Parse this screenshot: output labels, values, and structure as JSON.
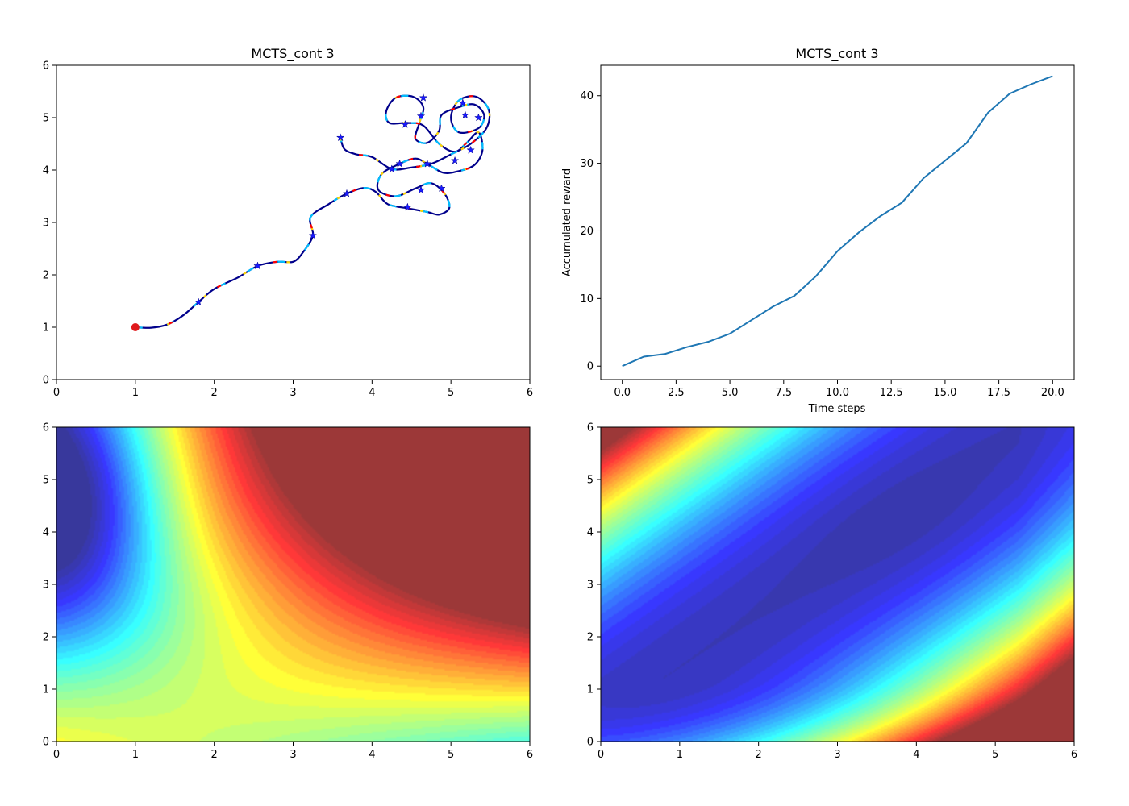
{
  "chart_data": [
    {
      "type": "line",
      "title": "MCTS_cont 3",
      "xlabel": "",
      "ylabel": "",
      "xlim": [
        0,
        6
      ],
      "ylim": [
        0,
        6
      ],
      "x_ticks": [
        "0",
        "1",
        "2",
        "3",
        "4",
        "5",
        "6"
      ],
      "y_ticks": [
        "0",
        "1",
        "2",
        "3",
        "4",
        "5",
        "6"
      ],
      "start_point": {
        "x": 1.0,
        "y": 1.0,
        "color": "#e0191c"
      },
      "path_color": "#00008b",
      "path_highlight_colors": [
        "#00bfff",
        "#ffd700",
        "#ff0000"
      ],
      "path": [
        [
          1.0,
          1.0
        ],
        [
          1.2,
          0.99
        ],
        [
          1.4,
          1.05
        ],
        [
          1.6,
          1.22
        ],
        [
          1.8,
          1.48
        ],
        [
          2.0,
          1.73
        ],
        [
          2.3,
          1.95
        ],
        [
          2.55,
          2.17
        ],
        [
          2.8,
          2.25
        ],
        [
          3.0,
          2.25
        ],
        [
          3.12,
          2.42
        ],
        [
          3.25,
          2.75
        ],
        [
          3.22,
          3.1
        ],
        [
          3.45,
          3.35
        ],
        [
          3.68,
          3.55
        ],
        [
          3.9,
          3.66
        ],
        [
          4.05,
          3.58
        ],
        [
          4.2,
          3.35
        ],
        [
          4.45,
          3.27
        ],
        [
          4.7,
          3.2
        ],
        [
          4.85,
          3.15
        ],
        [
          4.98,
          3.28
        ],
        [
          4.92,
          3.55
        ],
        [
          4.75,
          3.75
        ],
        [
          4.55,
          3.65
        ],
        [
          4.3,
          3.5
        ],
        [
          4.08,
          3.62
        ],
        [
          4.12,
          3.92
        ],
        [
          4.35,
          4.12
        ],
        [
          4.55,
          4.22
        ],
        [
          4.7,
          4.12
        ],
        [
          4.9,
          3.95
        ],
        [
          5.1,
          3.98
        ],
        [
          5.3,
          4.1
        ],
        [
          5.4,
          4.38
        ],
        [
          5.35,
          4.72
        ],
        [
          5.2,
          4.52
        ],
        [
          5.05,
          4.35
        ],
        [
          4.85,
          4.5
        ],
        [
          4.65,
          4.85
        ],
        [
          4.45,
          4.9
        ],
        [
          4.22,
          4.9
        ],
        [
          4.18,
          5.12
        ],
        [
          4.3,
          5.38
        ],
        [
          4.52,
          5.4
        ],
        [
          4.65,
          5.2
        ],
        [
          4.6,
          4.9
        ],
        [
          4.55,
          4.6
        ],
        [
          4.7,
          4.52
        ],
        [
          4.85,
          4.75
        ],
        [
          4.88,
          5.05
        ],
        [
          5.1,
          5.2
        ],
        [
          5.3,
          5.25
        ],
        [
          5.42,
          5.05
        ],
        [
          5.35,
          4.8
        ],
        [
          5.1,
          4.72
        ],
        [
          5.0,
          5.0
        ],
        [
          5.1,
          5.33
        ],
        [
          5.32,
          5.4
        ],
        [
          5.48,
          5.15
        ],
        [
          5.45,
          4.8
        ],
        [
          5.25,
          4.5
        ],
        [
          5.0,
          4.3
        ],
        [
          4.75,
          4.12
        ],
        [
          4.5,
          4.05
        ],
        [
          4.25,
          4.02
        ],
        [
          4.0,
          4.25
        ],
        [
          3.8,
          4.3
        ],
        [
          3.65,
          4.4
        ],
        [
          3.6,
          4.62
        ]
      ],
      "star_markers": [
        [
          1.8,
          1.48
        ],
        [
          2.55,
          2.17
        ],
        [
          3.25,
          2.75
        ],
        [
          3.68,
          3.55
        ],
        [
          3.6,
          4.62
        ],
        [
          4.35,
          4.12
        ],
        [
          4.25,
          4.02
        ],
        [
          4.45,
          3.29
        ],
        [
          4.62,
          3.62
        ],
        [
          4.88,
          3.65
        ],
        [
          4.7,
          4.12
        ],
        [
          4.42,
          4.87
        ],
        [
          4.62,
          5.03
        ],
        [
          4.65,
          5.38
        ],
        [
          5.15,
          5.28
        ],
        [
          5.18,
          5.05
        ],
        [
          5.35,
          5.0
        ],
        [
          5.25,
          4.38
        ],
        [
          5.05,
          4.18
        ]
      ]
    },
    {
      "type": "line",
      "title": "MCTS_cont 3",
      "xlabel": "Time steps",
      "ylabel": "Accumulated reward",
      "xlim": [
        -1,
        21
      ],
      "ylim": [
        -2,
        44.5
      ],
      "x_ticks": [
        "0.0",
        "2.5",
        "5.0",
        "7.5",
        "10.0",
        "12.5",
        "15.0",
        "17.5",
        "20.0"
      ],
      "y_ticks": [
        "0",
        "10",
        "20",
        "30",
        "40"
      ],
      "series": [
        {
          "color": "#1f77b4",
          "x": [
            0,
            1,
            2,
            3,
            4,
            5,
            6,
            7,
            8,
            9,
            10,
            11,
            12,
            13,
            14,
            15,
            16,
            17,
            18,
            19,
            20
          ],
          "y": [
            0.0,
            1.4,
            1.8,
            2.8,
            3.6,
            4.8,
            6.8,
            8.8,
            10.4,
            13.3,
            17.0,
            19.8,
            22.2,
            24.2,
            27.8,
            30.4,
            33.0,
            37.5,
            40.3,
            41.7,
            42.9
          ]
        }
      ]
    },
    {
      "type": "heatmap",
      "title": "",
      "xlabel": "",
      "ylabel": "",
      "xlim": [
        0,
        6
      ],
      "ylim": [
        0,
        6
      ],
      "x_ticks": [
        "0",
        "1",
        "2",
        "3",
        "4",
        "5",
        "6"
      ],
      "y_ticks": [
        "0",
        "1",
        "2",
        "3",
        "4",
        "5",
        "6"
      ],
      "colormap": "jet",
      "legend": "none"
    },
    {
      "type": "heatmap",
      "title": "",
      "xlabel": "",
      "ylabel": "",
      "xlim": [
        0,
        6
      ],
      "ylim": [
        0,
        6
      ],
      "x_ticks": [
        "0",
        "1",
        "2",
        "3",
        "4",
        "5",
        "6"
      ],
      "y_ticks": [
        "0",
        "1",
        "2",
        "3",
        "4",
        "5",
        "6"
      ],
      "colormap": "jet",
      "legend": "none"
    }
  ]
}
